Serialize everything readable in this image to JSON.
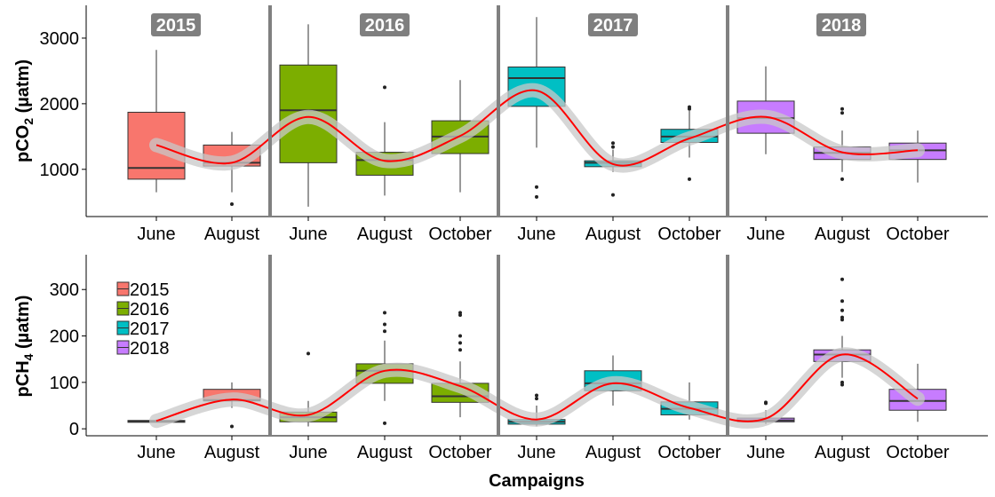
{
  "colors": {
    "2015": "#F8766D",
    "2016": "#7CAE00",
    "2017": "#00BFC4",
    "2018": "#C77CFF",
    "trend": "#FF0000",
    "ribbon": "#C8C8C8",
    "separator": "#808080",
    "year_label_bg": "#7F7F7F"
  },
  "x_axis_title": "Campaigns",
  "year_labels": [
    "2015",
    "2016",
    "2017",
    "2018"
  ],
  "legend": [
    {
      "label": "2015",
      "year": "2015"
    },
    {
      "label": "2016",
      "year": "2016"
    },
    {
      "label": "2017",
      "year": "2017"
    },
    {
      "label": "2018",
      "year": "2018"
    }
  ],
  "chart_data": [
    {
      "type": "box",
      "ylabel": "pCO",
      "ylabel_sub": "2",
      "ylabel_unit": " (µatm)",
      "ylim": [
        280,
        3500
      ],
      "yticks": [
        1000,
        2000,
        3000
      ],
      "categories": [
        "June",
        "August",
        "June",
        "August",
        "October",
        "June",
        "August",
        "October",
        "June",
        "August",
        "October"
      ],
      "years": [
        "2015",
        "2015",
        "2016",
        "2016",
        "2016",
        "2017",
        "2017",
        "2017",
        "2018",
        "2018",
        "2018"
      ],
      "boxes": [
        {
          "min": 650,
          "q1": 850,
          "median": 1020,
          "q3": 1870,
          "max": 2820,
          "outliers": []
        },
        {
          "min": 650,
          "q1": 1050,
          "median": 1100,
          "q3": 1370,
          "max": 1570,
          "outliers": [
            470
          ]
        },
        {
          "min": 430,
          "q1": 1100,
          "median": 1900,
          "q3": 2590,
          "max": 3210,
          "outliers": []
        },
        {
          "min": 600,
          "q1": 910,
          "median": 1140,
          "q3": 1260,
          "max": 1720,
          "outliers": [
            2250
          ]
        },
        {
          "min": 650,
          "q1": 1240,
          "median": 1500,
          "q3": 1740,
          "max": 2360,
          "outliers": []
        },
        {
          "min": 1330,
          "q1": 1960,
          "median": 2390,
          "q3": 2560,
          "max": 3320,
          "outliers": [
            730,
            580
          ]
        },
        {
          "min": 960,
          "q1": 1040,
          "median": 1100,
          "q3": 1130,
          "max": 1300,
          "outliers": [
            1400,
            1340,
            610
          ]
        },
        {
          "min": 1180,
          "q1": 1410,
          "median": 1500,
          "q3": 1610,
          "max": 1890,
          "outliers": [
            1950,
            1920,
            850
          ]
        },
        {
          "min": 1230,
          "q1": 1550,
          "median": 1780,
          "q3": 2040,
          "max": 2570,
          "outliers": []
        },
        {
          "min": 960,
          "q1": 1150,
          "median": 1250,
          "q3": 1340,
          "max": 1590,
          "outliers": [
            1920,
            1860,
            850
          ]
        },
        {
          "min": 800,
          "q1": 1150,
          "median": 1290,
          "q3": 1400,
          "max": 1590,
          "outliers": []
        }
      ],
      "trend": [
        1370,
        1100,
        1800,
        1130,
        1510,
        2200,
        1080,
        1470,
        1800,
        1260,
        1290
      ]
    },
    {
      "type": "box",
      "ylabel": "pCH",
      "ylabel_sub": "4",
      "ylabel_unit": " (µatm)",
      "ylim": [
        -15,
        375
      ],
      "yticks": [
        0,
        100,
        200,
        300
      ],
      "categories": [
        "June",
        "August",
        "June",
        "August",
        "October",
        "June",
        "August",
        "October",
        "June",
        "August",
        "October"
      ],
      "years": [
        "2015",
        "2015",
        "2016",
        "2016",
        "2016",
        "2017",
        "2017",
        "2017",
        "2018",
        "2018",
        "2018"
      ],
      "boxes": [
        {
          "min": 14,
          "q1": 14,
          "median": 16,
          "q3": 18,
          "max": 20,
          "outliers": []
        },
        {
          "min": 45,
          "q1": 60,
          "median": 62,
          "q3": 85,
          "max": 100,
          "outliers": [
            5
          ]
        },
        {
          "min": 5,
          "q1": 15,
          "median": 25,
          "q3": 36,
          "max": 60,
          "outliers": [
            162
          ]
        },
        {
          "min": 60,
          "q1": 98,
          "median": 125,
          "q3": 140,
          "max": 190,
          "outliers": [
            250,
            225,
            210,
            12
          ]
        },
        {
          "min": 25,
          "q1": 57,
          "median": 70,
          "q3": 98,
          "max": 145,
          "outliers": [
            250,
            245,
            200,
            185,
            170
          ]
        },
        {
          "min": 5,
          "q1": 10,
          "median": 15,
          "q3": 20,
          "max": 50,
          "outliers": [
            72,
            65
          ]
        },
        {
          "min": 50,
          "q1": 82,
          "median": 98,
          "q3": 125,
          "max": 158,
          "outliers": []
        },
        {
          "min": 20,
          "q1": 30,
          "median": 43,
          "q3": 58,
          "max": 100,
          "outliers": []
        },
        {
          "min": 10,
          "q1": 15,
          "median": 18,
          "q3": 23,
          "max": 40,
          "outliers": [
            57,
            55
          ]
        },
        {
          "min": 110,
          "q1": 145,
          "median": 160,
          "q3": 170,
          "max": 200,
          "outliers": [
            322,
            275,
            255,
            240,
            235,
            100,
            95
          ]
        },
        {
          "min": 15,
          "q1": 40,
          "median": 60,
          "q3": 85,
          "max": 140,
          "outliers": []
        }
      ],
      "trend": [
        17,
        63,
        30,
        125,
        92,
        20,
        98,
        45,
        22,
        160,
        65
      ]
    }
  ]
}
